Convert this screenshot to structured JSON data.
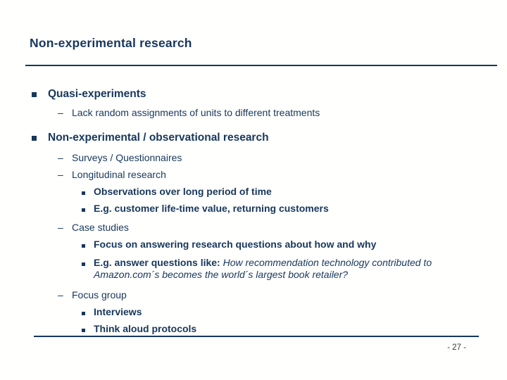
{
  "slide": {
    "title": "Non-experimental research",
    "page_number": "- 27 -",
    "colors": {
      "text": "#17375c",
      "rule": "#17375c",
      "page_number": "#3a3a3a",
      "background": "#fffffe"
    },
    "glyphs": {
      "dash": "–"
    },
    "bullets": [
      {
        "level": 1,
        "bullet": "square",
        "text": "Quasi-experiments"
      },
      {
        "level": 2,
        "bullet": "dash",
        "text": "Lack random assignments of units to different treatments"
      },
      {
        "level": 1,
        "bullet": "square",
        "text": "Non-experimental / observational research"
      },
      {
        "level": 2,
        "bullet": "dash",
        "text": "Surveys / Questionnaires"
      },
      {
        "level": 2,
        "bullet": "dash",
        "text": "Longitudinal research"
      },
      {
        "level": 3,
        "bullet": "square",
        "text": "Observations over long period of time"
      },
      {
        "level": 3,
        "bullet": "square",
        "text": "E.g. customer life-time value, returning customers"
      },
      {
        "level": 2,
        "bullet": "dash",
        "text": "Case studies"
      },
      {
        "level": 3,
        "bullet": "square",
        "text": "Focus on answering research questions about how and why"
      },
      {
        "level": 3,
        "bullet": "square",
        "segments": [
          {
            "style": "bold",
            "text": "E.g. answer questions like: "
          },
          {
            "style": "italic",
            "text": "How recommendation technology contributed to Amazon.com´s becomes the world´s largest book retailer?"
          }
        ]
      },
      {
        "level": 2,
        "bullet": "dash",
        "text": "Focus group"
      },
      {
        "level": 3,
        "bullet": "square",
        "text": "Interviews"
      },
      {
        "level": 3,
        "bullet": "square",
        "text": "Think aloud protocols"
      }
    ]
  }
}
